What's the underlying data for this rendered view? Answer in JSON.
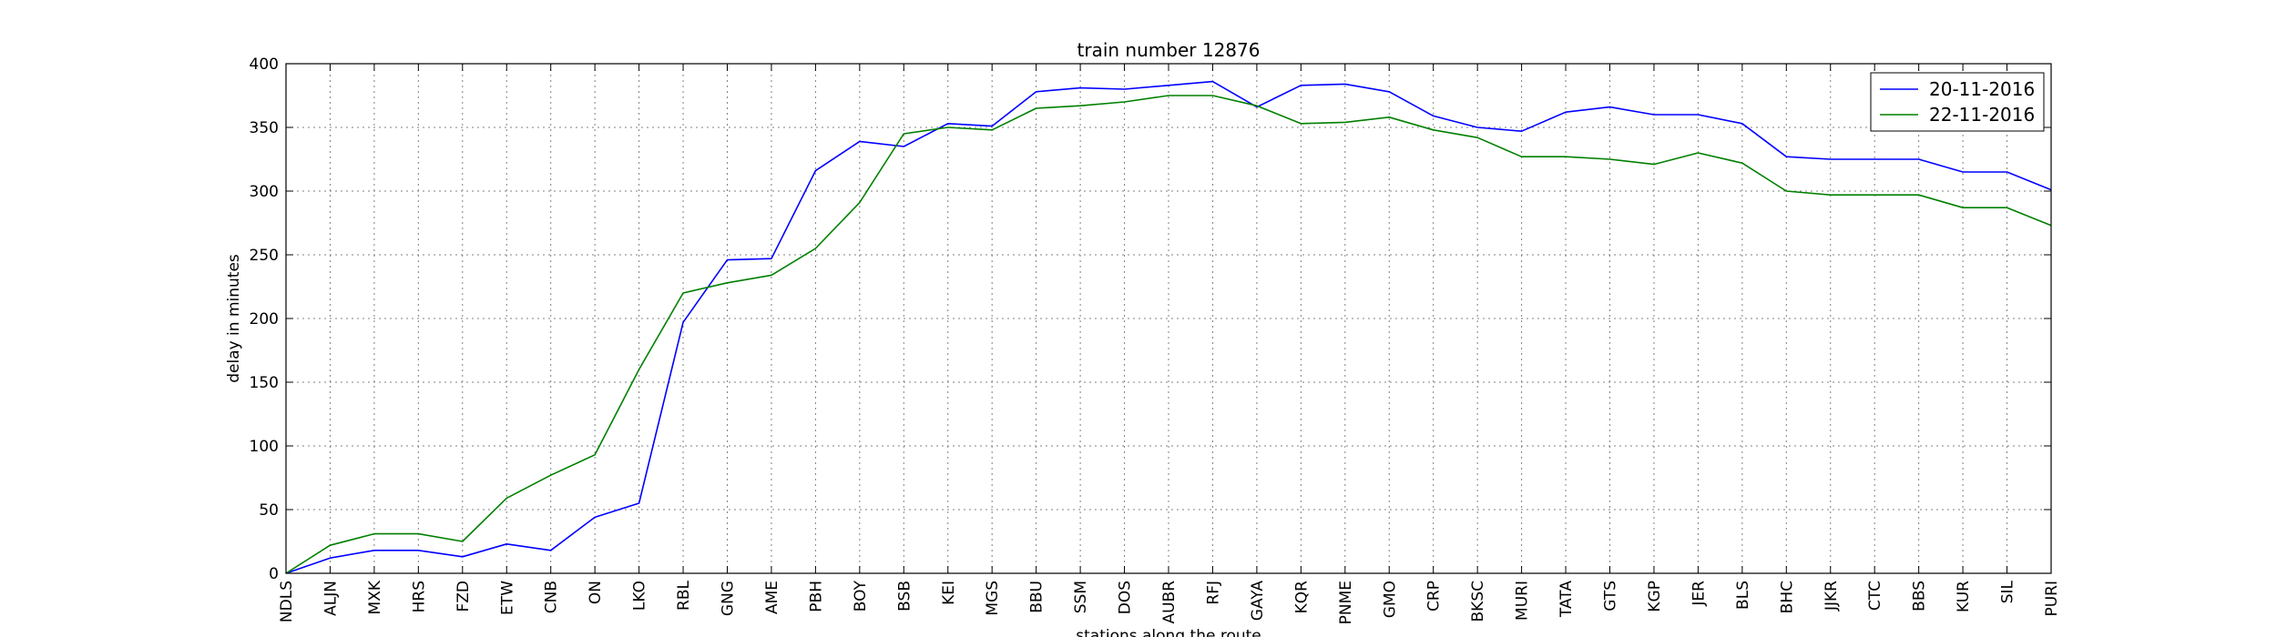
{
  "chart_data": {
    "type": "line",
    "title": "train number 12876",
    "xlabel": "stations along the route",
    "ylabel": "delay in minutes",
    "ylim": [
      0,
      400
    ],
    "yticks": [
      0,
      50,
      100,
      150,
      200,
      250,
      300,
      350,
      400
    ],
    "grid": true,
    "legend_position": "top-right",
    "categories": [
      "NDLS",
      "ALJN",
      "MXK",
      "HRS",
      "FZD",
      "ETW",
      "CNB",
      "ON",
      "LKO",
      "RBL",
      "GNG",
      "AME",
      "PBH",
      "BOY",
      "BSB",
      "KEI",
      "MGS",
      "BBU",
      "SSM",
      "DOS",
      "AUBR",
      "RFJ",
      "GAYA",
      "KQR",
      "PNME",
      "GMO",
      "CRP",
      "BKSC",
      "MURI",
      "TATA",
      "GTS",
      "KGP",
      "JER",
      "BLS",
      "BHC",
      "JJKR",
      "CTC",
      "BBS",
      "KUR",
      "SIL",
      "PURI"
    ],
    "series": [
      {
        "name": "20-11-2016",
        "color": "#0000ff",
        "values": [
          0,
          12,
          18,
          18,
          13,
          23,
          18,
          44,
          55,
          197,
          246,
          247,
          316,
          339,
          335,
          353,
          351,
          378,
          381,
          380,
          383,
          386,
          366,
          383,
          384,
          378,
          359,
          350,
          347,
          362,
          366,
          360,
          360,
          353,
          327,
          325,
          325,
          325,
          315,
          315,
          301
        ]
      },
      {
        "name": "22-11-2016",
        "color": "#008000",
        "values": [
          0,
          22,
          31,
          31,
          25,
          59,
          77,
          93,
          160,
          220,
          228,
          234,
          255,
          291,
          345,
          350,
          348,
          365,
          367,
          370,
          375,
          375,
          367,
          353,
          354,
          358,
          348,
          342,
          327,
          327,
          325,
          321,
          330,
          322,
          300,
          297,
          297,
          297,
          287,
          287,
          273
        ]
      }
    ]
  }
}
